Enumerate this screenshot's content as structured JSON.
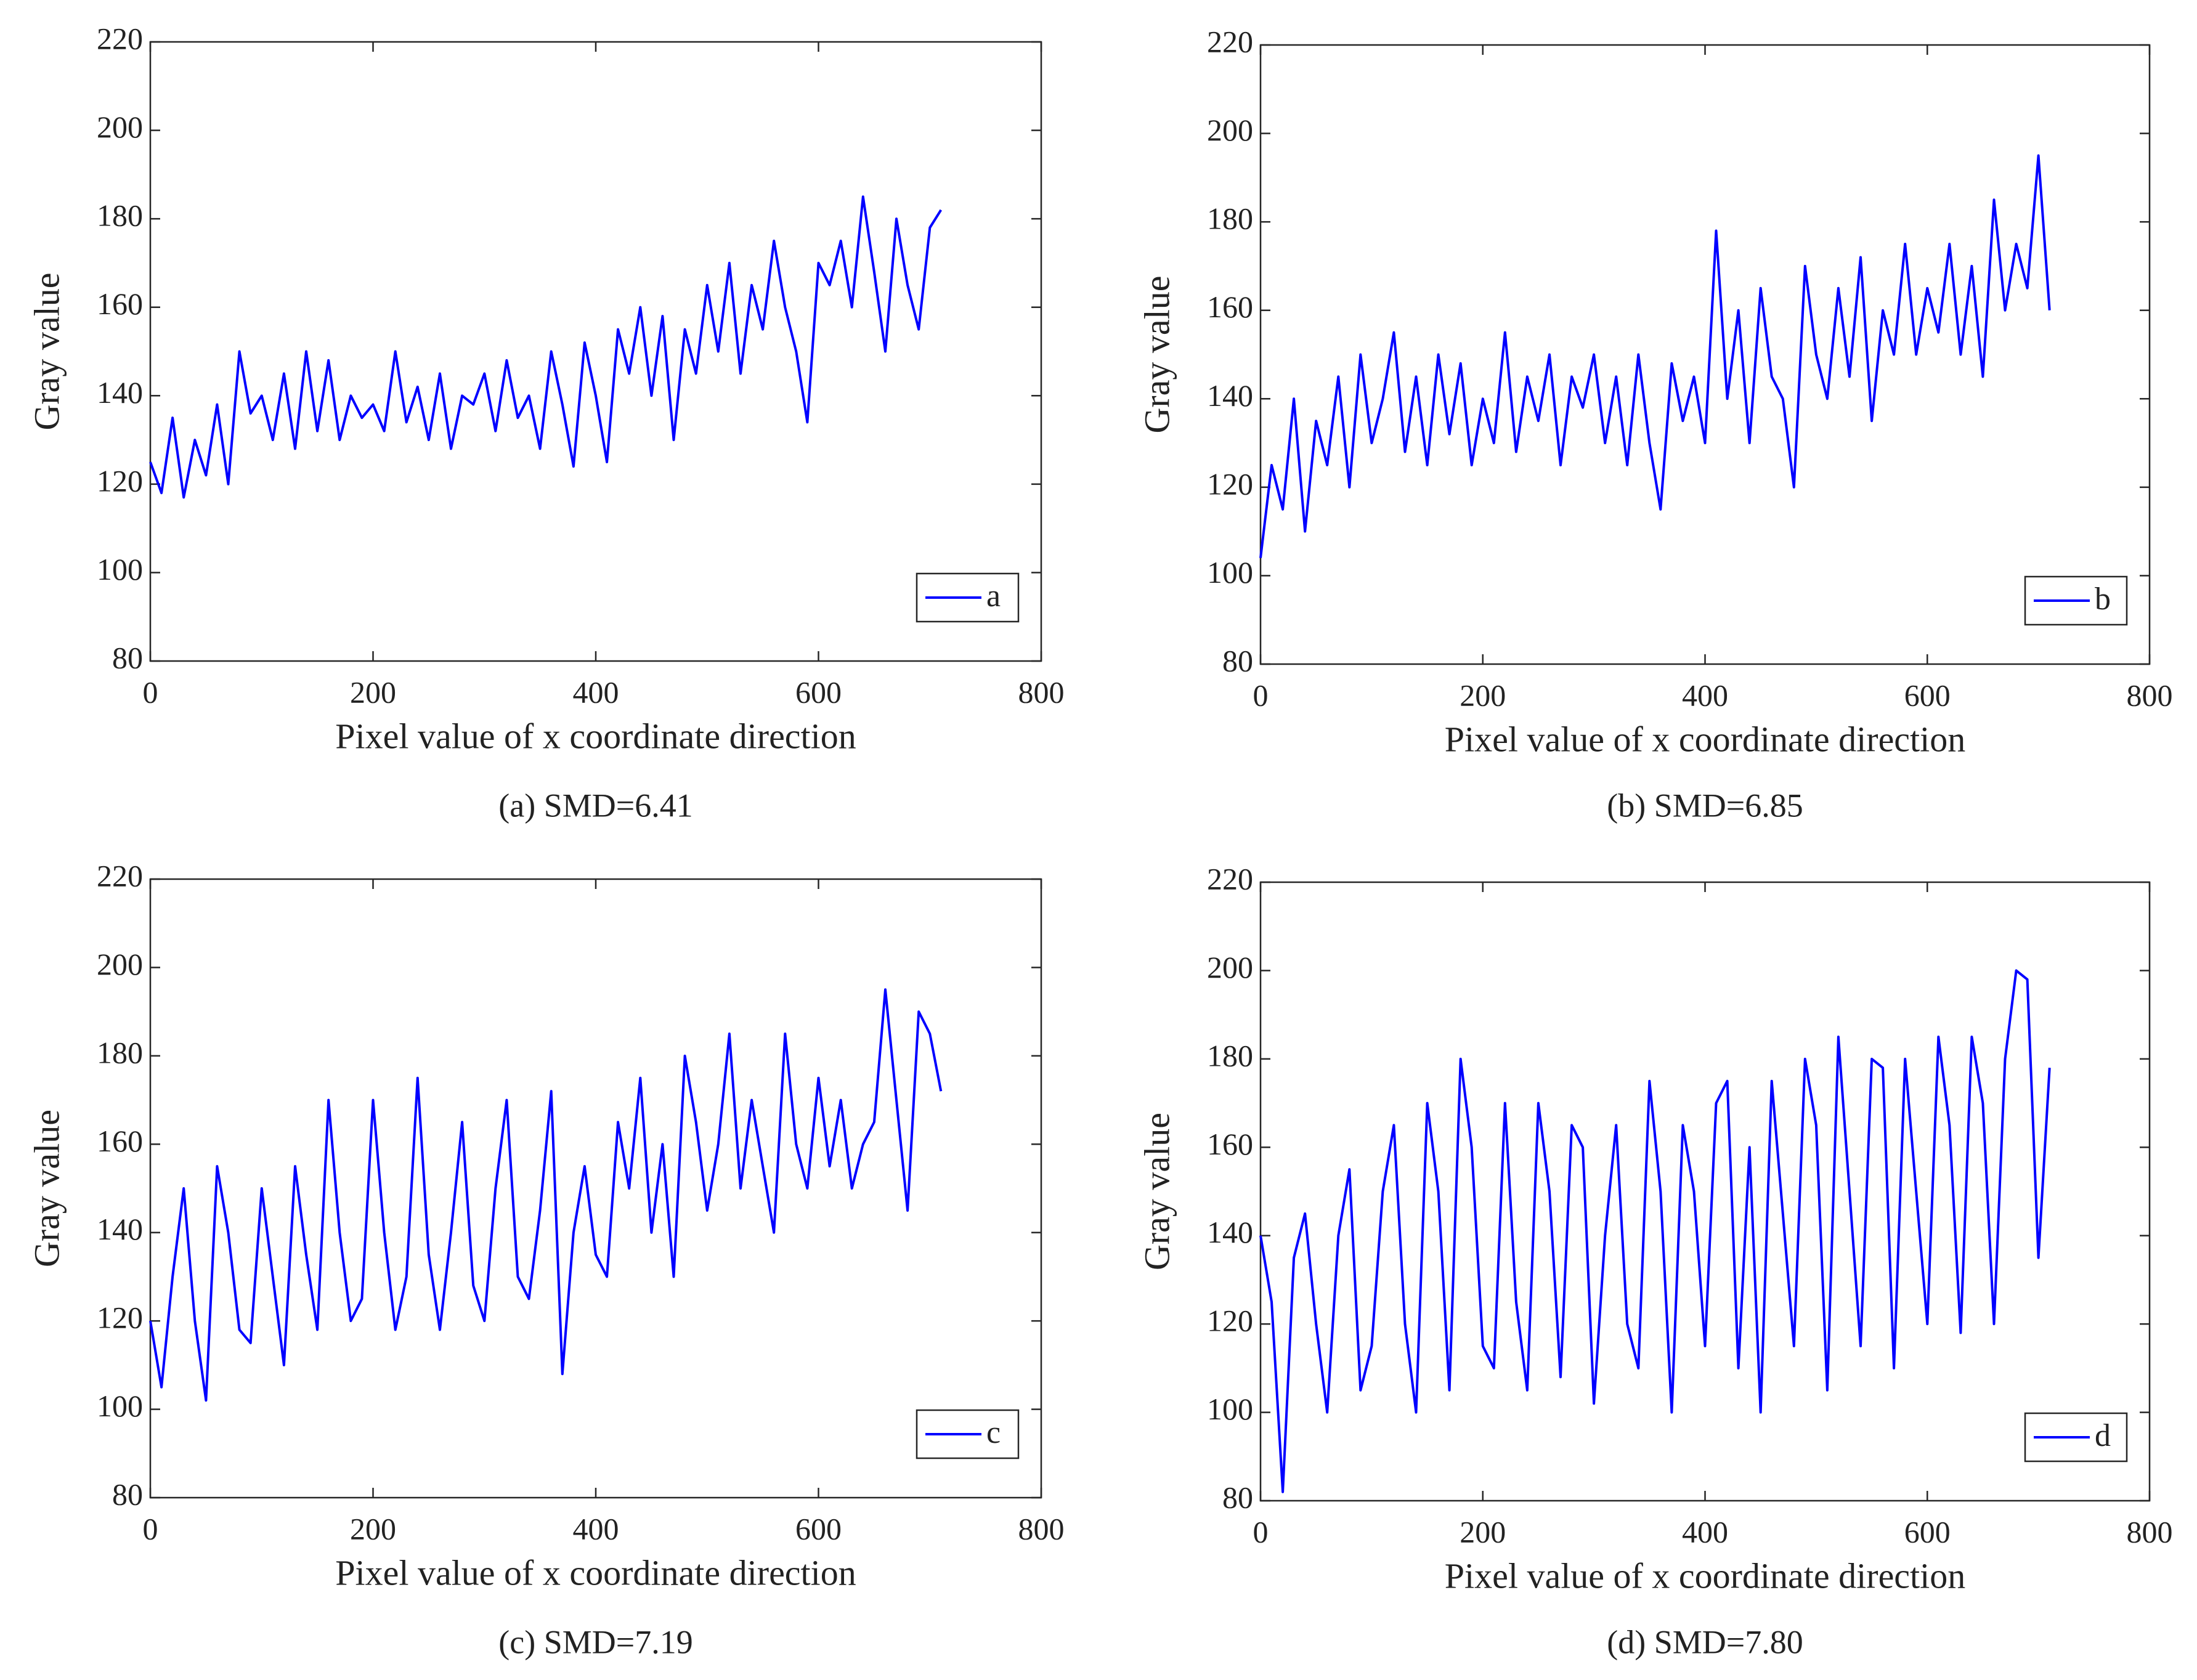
{
  "chart_data": [
    {
      "type": "line",
      "caption": "(a) SMD=6.41",
      "xlabel": "Pixel value of x coordinate direction",
      "ylabel": "Gray value",
      "x": [
        0,
        10,
        20,
        30,
        40,
        50,
        60,
        70,
        80,
        90,
        100,
        110,
        120,
        130,
        140,
        150,
        160,
        170,
        180,
        190,
        200,
        210,
        220,
        230,
        240,
        250,
        260,
        270,
        280,
        290,
        300,
        310,
        320,
        330,
        340,
        350,
        360,
        370,
        380,
        390,
        400,
        410,
        420,
        430,
        440,
        450,
        460,
        470,
        480,
        490,
        500,
        510,
        520,
        530,
        540,
        550,
        560,
        570,
        580,
        590,
        600,
        610,
        620,
        630,
        640,
        650,
        660,
        670,
        680,
        690,
        700,
        710
      ],
      "series": [
        {
          "name": "a",
          "color": "#0000ff",
          "values": [
            125,
            118,
            135,
            117,
            130,
            122,
            138,
            120,
            150,
            136,
            140,
            130,
            145,
            128,
            150,
            132,
            148,
            130,
            140,
            135,
            138,
            132,
            150,
            134,
            142,
            130,
            145,
            128,
            140,
            138,
            145,
            132,
            148,
            135,
            140,
            128,
            150,
            138,
            124,
            152,
            140,
            125,
            155,
            145,
            160,
            140,
            158,
            130,
            155,
            145,
            165,
            150,
            170,
            145,
            165,
            155,
            175,
            160,
            150,
            134,
            170,
            165,
            175,
            160,
            185,
            168,
            150,
            180,
            165,
            155,
            178,
            182
          ]
        }
      ],
      "xlim": [
        0,
        800
      ],
      "ylim": [
        80,
        220
      ],
      "xticks": [
        0,
        200,
        400,
        600,
        800
      ],
      "yticks": [
        80,
        100,
        120,
        140,
        160,
        180,
        200,
        220
      ],
      "legend": "lower right"
    },
    {
      "type": "line",
      "caption": "(b) SMD=6.85",
      "xlabel": "Pixel value of x coordinate direction",
      "ylabel": "Gray value",
      "x": [
        0,
        10,
        20,
        30,
        40,
        50,
        60,
        70,
        80,
        90,
        100,
        110,
        120,
        130,
        140,
        150,
        160,
        170,
        180,
        190,
        200,
        210,
        220,
        230,
        240,
        250,
        260,
        270,
        280,
        290,
        300,
        310,
        320,
        330,
        340,
        350,
        360,
        370,
        380,
        390,
        400,
        410,
        420,
        430,
        440,
        450,
        460,
        470,
        480,
        490,
        500,
        510,
        520,
        530,
        540,
        550,
        560,
        570,
        580,
        590,
        600,
        610,
        620,
        630,
        640,
        650,
        660,
        670,
        680,
        690,
        700,
        710
      ],
      "series": [
        {
          "name": "b",
          "color": "#0000ff",
          "values": [
            104,
            125,
            115,
            140,
            110,
            135,
            125,
            145,
            120,
            150,
            130,
            140,
            155,
            128,
            145,
            125,
            150,
            132,
            148,
            125,
            140,
            130,
            155,
            128,
            145,
            135,
            150,
            125,
            145,
            138,
            150,
            130,
            145,
            125,
            150,
            130,
            115,
            148,
            135,
            145,
            130,
            178,
            140,
            160,
            130,
            165,
            145,
            140,
            120,
            170,
            150,
            140,
            165,
            145,
            172,
            135,
            160,
            150,
            175,
            150,
            165,
            155,
            175,
            150,
            170,
            145,
            185,
            160,
            175,
            165,
            195,
            160
          ]
        }
      ],
      "xlim": [
        0,
        800
      ],
      "ylim": [
        80,
        220
      ],
      "xticks": [
        0,
        200,
        400,
        600,
        800
      ],
      "yticks": [
        80,
        100,
        120,
        140,
        160,
        180,
        200,
        220
      ],
      "legend": "lower right"
    },
    {
      "type": "line",
      "caption": "(c) SMD=7.19",
      "xlabel": "Pixel value of x coordinate direction",
      "ylabel": "Gray value",
      "x": [
        0,
        10,
        20,
        30,
        40,
        50,
        60,
        70,
        80,
        90,
        100,
        110,
        120,
        130,
        140,
        150,
        160,
        170,
        180,
        190,
        200,
        210,
        220,
        230,
        240,
        250,
        260,
        270,
        280,
        290,
        300,
        310,
        320,
        330,
        340,
        350,
        360,
        370,
        380,
        390,
        400,
        410,
        420,
        430,
        440,
        450,
        460,
        470,
        480,
        490,
        500,
        510,
        520,
        530,
        540,
        550,
        560,
        570,
        580,
        590,
        600,
        610,
        620,
        630,
        640,
        650,
        660,
        670,
        680,
        690,
        700,
        710
      ],
      "series": [
        {
          "name": "c",
          "color": "#0000ff",
          "values": [
            120,
            105,
            130,
            150,
            120,
            102,
            155,
            140,
            118,
            115,
            150,
            130,
            110,
            155,
            135,
            118,
            170,
            140,
            120,
            125,
            170,
            140,
            118,
            130,
            175,
            135,
            118,
            140,
            165,
            128,
            120,
            150,
            170,
            130,
            125,
            145,
            172,
            108,
            140,
            155,
            135,
            130,
            165,
            150,
            175,
            140,
            160,
            130,
            180,
            165,
            145,
            160,
            185,
            150,
            170,
            155,
            140,
            185,
            160,
            150,
            175,
            155,
            170,
            150,
            160,
            165,
            195,
            170,
            145,
            190,
            185,
            172
          ]
        }
      ],
      "xlim": [
        0,
        800
      ],
      "ylim": [
        80,
        220
      ],
      "xticks": [
        0,
        200,
        400,
        600,
        800
      ],
      "yticks": [
        80,
        100,
        120,
        140,
        160,
        180,
        200,
        220
      ],
      "legend": "lower right"
    },
    {
      "type": "line",
      "caption": "(d) SMD=7.80",
      "xlabel": "Pixel value of x coordinate direction",
      "ylabel": "Gray value",
      "x": [
        0,
        10,
        20,
        30,
        40,
        50,
        60,
        70,
        80,
        90,
        100,
        110,
        120,
        130,
        140,
        150,
        160,
        170,
        180,
        190,
        200,
        210,
        220,
        230,
        240,
        250,
        260,
        270,
        280,
        290,
        300,
        310,
        320,
        330,
        340,
        350,
        360,
        370,
        380,
        390,
        400,
        410,
        420,
        430,
        440,
        450,
        460,
        470,
        480,
        490,
        500,
        510,
        520,
        530,
        540,
        550,
        560,
        570,
        580,
        590,
        600,
        610,
        620,
        630,
        640,
        650,
        660,
        670,
        680,
        690,
        700,
        710
      ],
      "series": [
        {
          "name": "d",
          "color": "#0000ff",
          "values": [
            140,
            125,
            82,
            135,
            145,
            120,
            100,
            140,
            155,
            105,
            115,
            150,
            165,
            120,
            100,
            170,
            150,
            105,
            180,
            160,
            115,
            110,
            170,
            125,
            105,
            170,
            150,
            108,
            165,
            160,
            102,
            140,
            165,
            120,
            110,
            175,
            150,
            100,
            165,
            150,
            115,
            170,
            175,
            110,
            160,
            100,
            175,
            145,
            115,
            180,
            165,
            105,
            185,
            150,
            115,
            180,
            178,
            110,
            180,
            150,
            120,
            185,
            165,
            118,
            185,
            170,
            120,
            180,
            200,
            198,
            135,
            178
          ]
        }
      ],
      "xlim": [
        0,
        800
      ],
      "ylim": [
        80,
        220
      ],
      "xticks": [
        0,
        200,
        400,
        600,
        800
      ],
      "yticks": [
        80,
        100,
        120,
        140,
        160,
        180,
        200,
        220
      ],
      "legend": "lower right"
    }
  ]
}
